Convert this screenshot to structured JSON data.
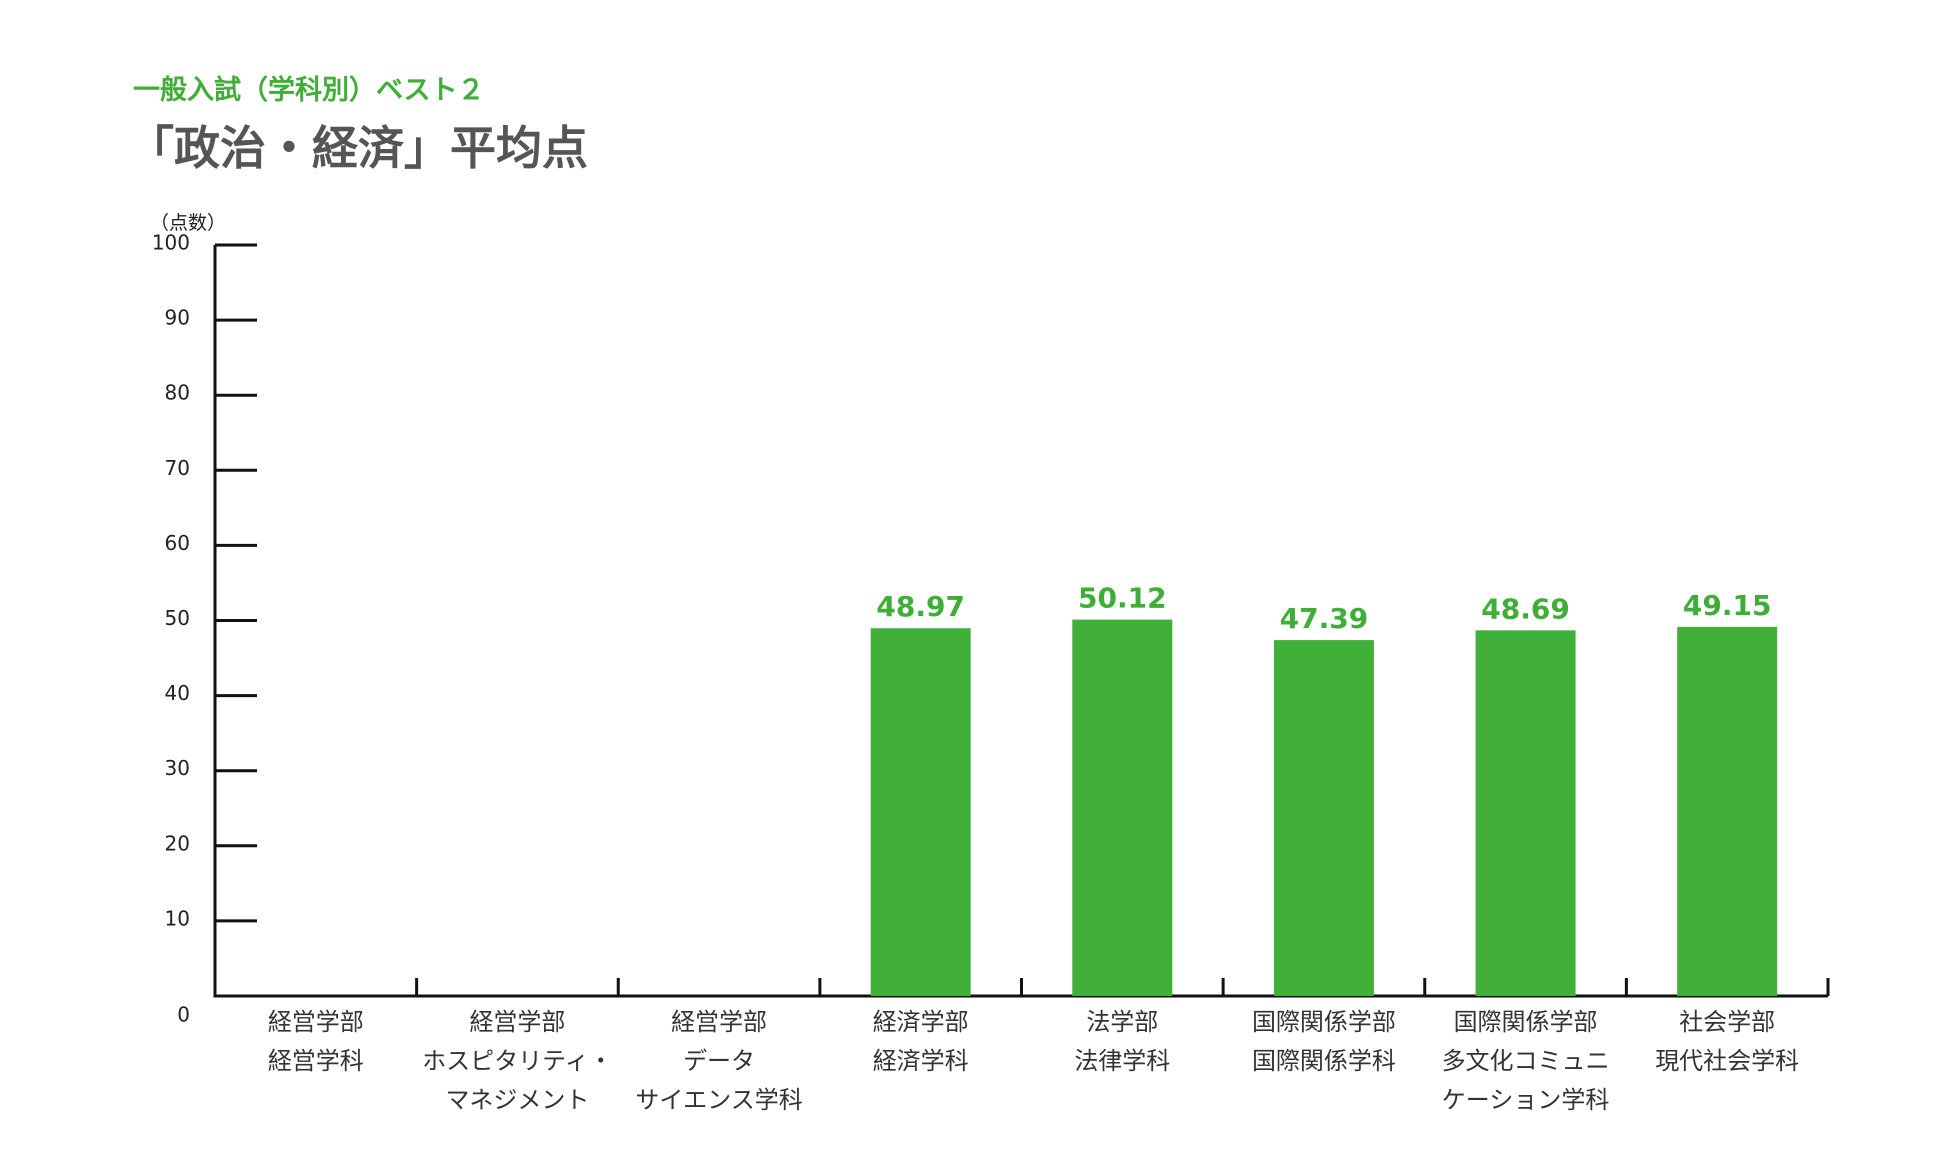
{
  "subtitle": "一般入試（学科別）ベスト２",
  "title": "「政治・経済」平均点",
  "chart_data": {
    "type": "bar",
    "ylabel": "（点数）",
    "ylim": [
      0,
      100
    ],
    "yticks": [
      0,
      10,
      20,
      30,
      40,
      50,
      60,
      70,
      80,
      90,
      100
    ],
    "bar_color": "#40b038",
    "categories": [
      [
        "経営学部",
        "経営学科"
      ],
      [
        "経営学部",
        "ホスピタリティ・",
        "マネジメント"
      ],
      [
        "経営学部",
        "データ",
        "サイエンス学科"
      ],
      [
        "経済学部",
        "経済学科"
      ],
      [
        "法学部",
        "法律学科"
      ],
      [
        "国際関係学部",
        "国際関係学科"
      ],
      [
        "国際関係学部",
        "多文化コミュニ",
        "ケーション学科"
      ],
      [
        "社会学部",
        "現代社会学科"
      ]
    ],
    "values": [
      null,
      null,
      null,
      48.97,
      50.12,
      47.39,
      48.69,
      49.15
    ],
    "value_labels": [
      "",
      "",
      "",
      "48.97",
      "50.12",
      "47.39",
      "48.69",
      "49.15"
    ]
  }
}
